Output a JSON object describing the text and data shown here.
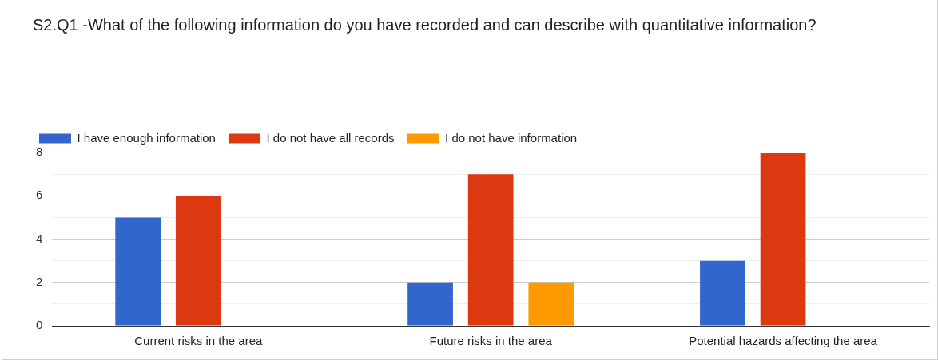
{
  "chart_data": {
    "type": "bar",
    "title": "S2.Q1 -What of the following information do you have recorded and can describe with quantitative information?",
    "categories": [
      "Current risks in the area",
      "Future risks in the area",
      "Potential hazards affecting the area"
    ],
    "series": [
      {
        "name": "I have enough information",
        "color": "#3366cc",
        "values": [
          5,
          2,
          3
        ]
      },
      {
        "name": "I do not have all records",
        "color": "#dc3912",
        "values": [
          6,
          7,
          8
        ]
      },
      {
        "name": "I do not have information",
        "color": "#ff9900",
        "values": [
          0,
          2,
          0
        ]
      }
    ],
    "ylim": [
      0,
      8
    ],
    "yticks": [
      0,
      {
        "value": 1,
        "label": null
      },
      2,
      {
        "value": 3,
        "label": null
      },
      4,
      {
        "value": 5,
        "label": null
      },
      6,
      {
        "value": 7,
        "label": null
      },
      8
    ],
    "grid": "y",
    "legend": "top left"
  }
}
